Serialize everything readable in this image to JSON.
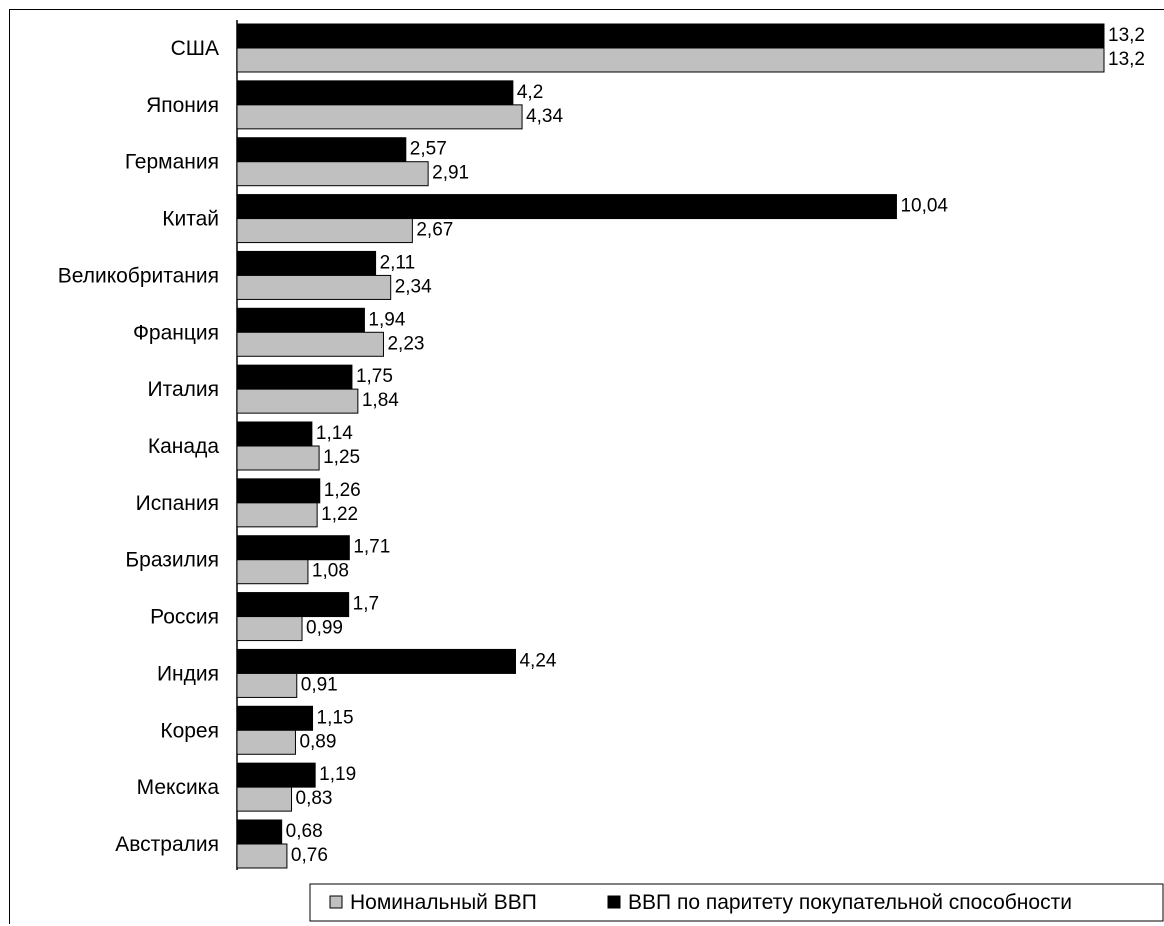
{
  "chart_data": {
    "type": "bar",
    "orientation": "horizontal",
    "categories": [
      "США",
      "Япония",
      "Германия",
      "Китай",
      "Великобритания",
      "Франция",
      "Италия",
      "Канада",
      "Испания",
      "Бразилия",
      "Россия",
      "Индия",
      "Корея",
      "Мексика",
      "Австралия"
    ],
    "series": [
      {
        "name": "ВВП по паритету покупательной способности",
        "color": "#000000",
        "values": [
          13.2,
          4.2,
          2.57,
          10.04,
          2.11,
          1.94,
          1.75,
          1.14,
          1.26,
          1.71,
          1.7,
          4.24,
          1.15,
          1.19,
          0.68
        ],
        "labels": [
          "13,2",
          "4,2",
          "2,57",
          "10,04",
          "2,11",
          "1,94",
          "1,75",
          "1,14",
          "1,26",
          "1,71",
          "1,7",
          "4,24",
          "1,15",
          "1,19",
          "0,68"
        ]
      },
      {
        "name": "Номинальный ВВП",
        "color": "#c0c0c0",
        "values": [
          13.2,
          4.34,
          2.91,
          2.67,
          2.34,
          2.23,
          1.84,
          1.25,
          1.22,
          1.08,
          0.99,
          0.91,
          0.89,
          0.83,
          0.76
        ],
        "labels": [
          "13,2",
          "4,34",
          "2,91",
          "2,67",
          "2,34",
          "2,23",
          "1,84",
          "1,25",
          "1,22",
          "1,08",
          "0,99",
          "0,91",
          "0,89",
          "0,83",
          "0,76"
        ]
      }
    ],
    "xlim": [
      0,
      13.2
    ],
    "grid": false,
    "legend": {
      "position": "bottom-right",
      "entries": [
        "Номинальный ВВП",
        "ВВП по паритету покупательной способности"
      ]
    }
  }
}
